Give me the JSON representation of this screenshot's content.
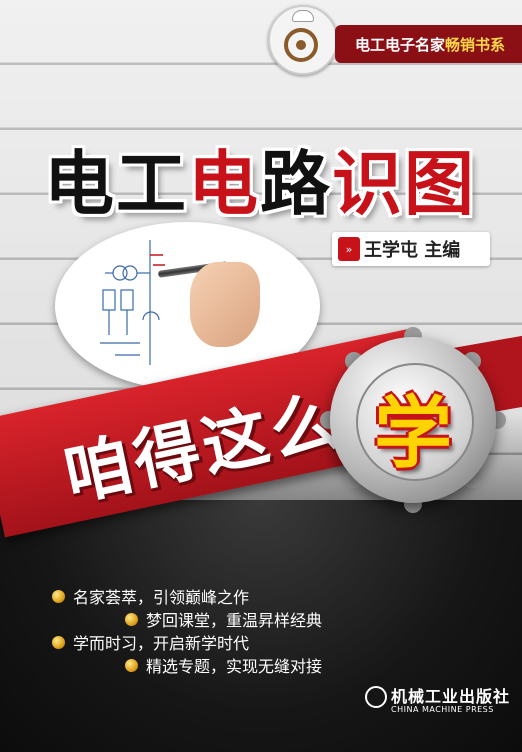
{
  "series": {
    "prefix": "电工电子名家",
    "highlight": "畅销书系"
  },
  "title": {
    "part1": "电工",
    "part2": "电",
    "part3": "路",
    "part4": "识图"
  },
  "author": {
    "mark": "»",
    "text": "王学屯 主编"
  },
  "slogan": "咱得这么",
  "badge_char": "学",
  "bullets": [
    "名家荟萃，引领巅峰之作",
    "梦回课堂，重温昇样经典",
    "学而时习，开启新学时代",
    "精选专题，实现无缝对接"
  ],
  "publisher": {
    "cn": "机械工业出版社",
    "en": "CHINA MACHINE PRESS"
  },
  "colors": {
    "brand_red": "#c8121a",
    "banner": "#8b1016",
    "gold": "#ffd400"
  }
}
